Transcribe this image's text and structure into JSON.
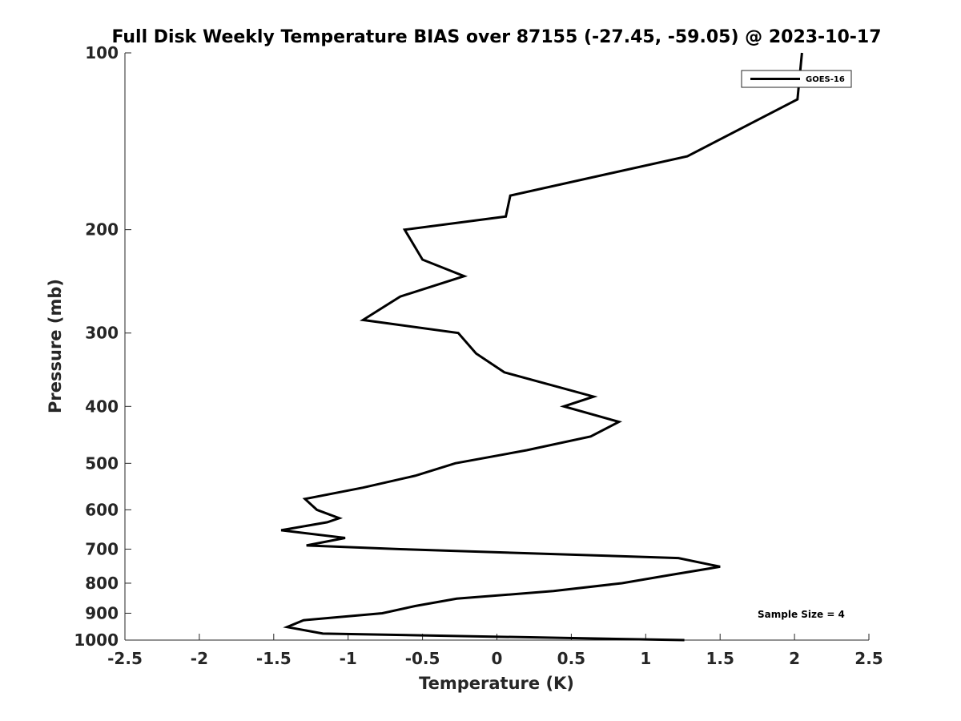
{
  "chart_data": {
    "type": "line",
    "title": "Full Disk Weekly Temperature BIAS over 87155 (-27.45, -59.05) @ 2023-10-17",
    "xlabel": "Temperature (K)",
    "ylabel": "Pressure (mb)",
    "xlim": [
      -2.5,
      2.5
    ],
    "ylim": [
      1000,
      100
    ],
    "yscale": "log",
    "y_reversed": true,
    "grid": false,
    "legend_position": "top-right",
    "x_tick_labels": [
      "-2.5",
      "-2",
      "-1.5",
      "-1",
      "-0.5",
      "0",
      "0.5",
      "1",
      "1.5",
      "2",
      "2.5"
    ],
    "x_ticks": [
      -2.5,
      -2,
      -1.5,
      -1,
      -0.5,
      0,
      0.5,
      1,
      1.5,
      2,
      2.5
    ],
    "y_tick_labels": [
      "100",
      "200",
      "300",
      "400",
      "500",
      "600",
      "700",
      "800",
      "900",
      "1000"
    ],
    "y_ticks": [
      100,
      200,
      300,
      400,
      500,
      600,
      700,
      800,
      900,
      1000
    ],
    "series": [
      {
        "name": "GOES-16",
        "color": "#000000",
        "points": [
          [
            2.05,
            100
          ],
          [
            2.02,
            120
          ],
          [
            1.28,
            150
          ],
          [
            0.09,
            175
          ],
          [
            0.06,
            190
          ],
          [
            -0.62,
            200
          ],
          [
            -0.5,
            225
          ],
          [
            -0.22,
            240
          ],
          [
            -0.65,
            260
          ],
          [
            -0.9,
            285
          ],
          [
            -0.26,
            300
          ],
          [
            -0.14,
            325
          ],
          [
            0.05,
            350
          ],
          [
            0.65,
            385
          ],
          [
            0.45,
            400
          ],
          [
            0.82,
            425
          ],
          [
            0.63,
            450
          ],
          [
            0.2,
            475
          ],
          [
            -0.28,
            500
          ],
          [
            -0.55,
            525
          ],
          [
            -0.9,
            550
          ],
          [
            -1.29,
            575
          ],
          [
            -1.21,
            600
          ],
          [
            -1.06,
            620
          ],
          [
            -1.14,
            630
          ],
          [
            -1.45,
            650
          ],
          [
            -1.02,
            670
          ],
          [
            -1.28,
            690
          ],
          [
            -0.65,
            700
          ],
          [
            1.22,
            725
          ],
          [
            1.5,
            750
          ],
          [
            1.16,
            775
          ],
          [
            0.84,
            800
          ],
          [
            0.38,
            825
          ],
          [
            -0.27,
            850
          ],
          [
            -0.55,
            875
          ],
          [
            -0.77,
            900
          ],
          [
            -1.3,
            925
          ],
          [
            -1.41,
            950
          ],
          [
            -1.17,
            975
          ],
          [
            1.26,
            1000
          ]
        ]
      }
    ],
    "annotations": [
      {
        "text": "Sample Size = 4",
        "position": "bottom-right"
      }
    ]
  }
}
